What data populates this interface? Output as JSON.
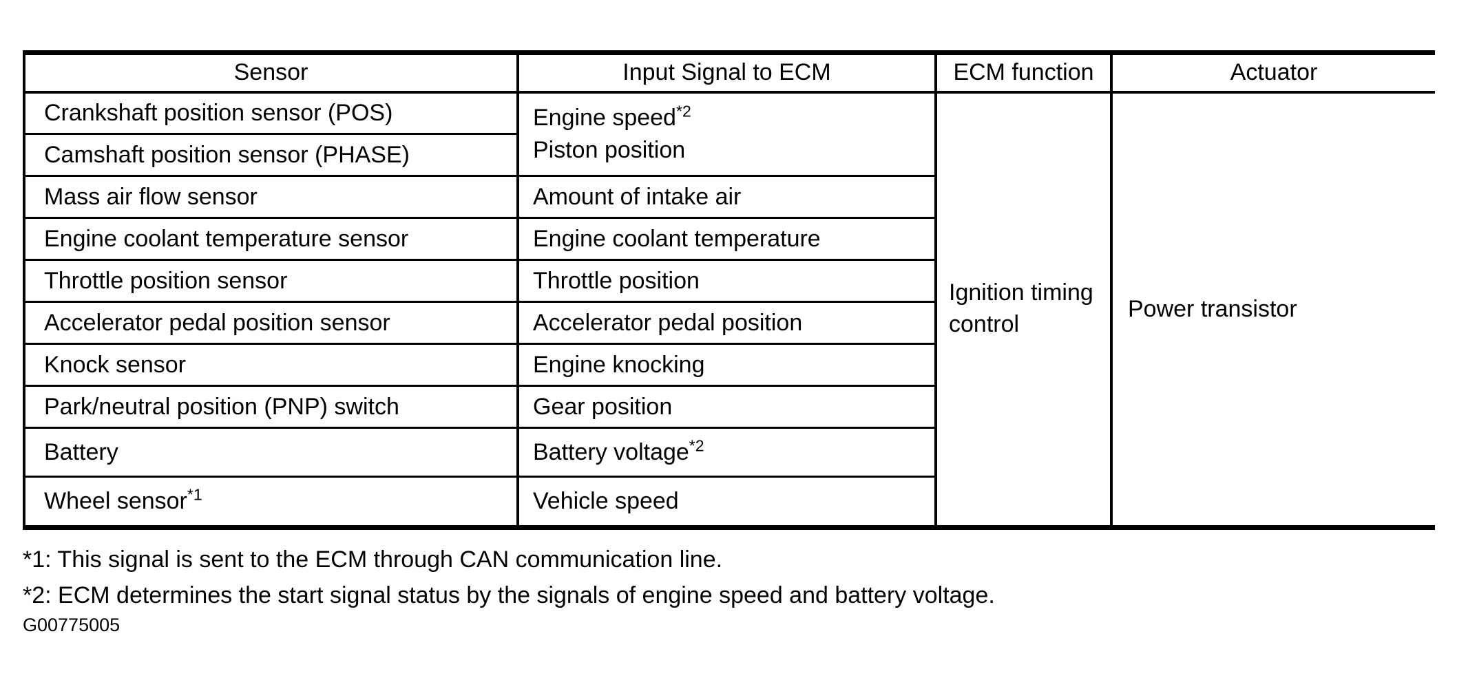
{
  "page": {
    "paper_color": "#ffffff",
    "ink_color": "#000000"
  },
  "table": {
    "headers": [
      "Sensor",
      "Input Signal to ECM",
      "ECM function",
      "Actuator"
    ],
    "merged_signal": {
      "text": "Engine speed",
      "sup": "*2",
      "line2": "Piston position"
    },
    "ecm_function": "Ignition timing control",
    "actuator": "Power transistor",
    "rows": [
      {
        "sensor": "Crankshaft position sensor (POS)"
      },
      {
        "sensor": "Camshaft position sensor (PHASE)"
      },
      {
        "sensor": "Mass air flow sensor",
        "signal": "Amount of intake air"
      },
      {
        "sensor": "Engine coolant temperature sensor",
        "signal": "Engine coolant temperature"
      },
      {
        "sensor": "Throttle position sensor",
        "signal": "Throttle position"
      },
      {
        "sensor": "Accelerator pedal position sensor",
        "signal": "Accelerator pedal position"
      },
      {
        "sensor": "Knock sensor",
        "signal": "Engine knocking"
      },
      {
        "sensor": "Park/neutral position (PNP) switch",
        "signal": "Gear position"
      },
      {
        "sensor": "Battery",
        "signal": "Battery voltage",
        "signal_sup": "*2"
      },
      {
        "sensor": "Wheel sensor",
        "sensor_sup": "*1",
        "signal": "Vehicle speed"
      }
    ]
  },
  "footnotes": [
    "*1: This signal is sent to the ECM through CAN communication line.",
    "*2: ECM determines the start signal status by the signals of engine speed and battery voltage."
  ],
  "figure_code": "G00775005"
}
